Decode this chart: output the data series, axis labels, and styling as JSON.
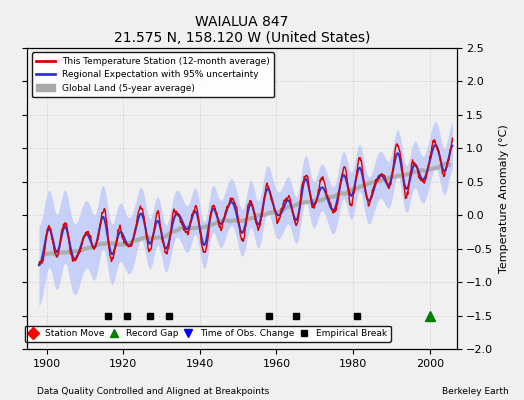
{
  "title": "WAIALUA 847",
  "subtitle": "21.575 N, 158.120 W (United States)",
  "footer_left": "Data Quality Controlled and Aligned at Breakpoints",
  "footer_right": "Berkeley Earth",
  "xlim": [
    1895,
    2007
  ],
  "ylim": [
    -2.0,
    2.5
  ],
  "yticks": [
    -2.0,
    -1.5,
    -1.0,
    -0.5,
    0.0,
    0.5,
    1.0,
    1.5,
    2.0,
    2.5
  ],
  "xticks": [
    1900,
    1920,
    1940,
    1960,
    1980,
    2000
  ],
  "ylabel": "Temperature Anomaly (°C)",
  "station_color": "#dd0000",
  "regional_color": "#3333cc",
  "global_color": "#aaaaaa",
  "uncertainty_color": "#aabbff",
  "empirical_breaks": [
    1916,
    1921,
    1927,
    1932,
    1958,
    1965,
    1981
  ],
  "record_gap": [
    2000
  ],
  "station_moves": [],
  "obs_changes": []
}
